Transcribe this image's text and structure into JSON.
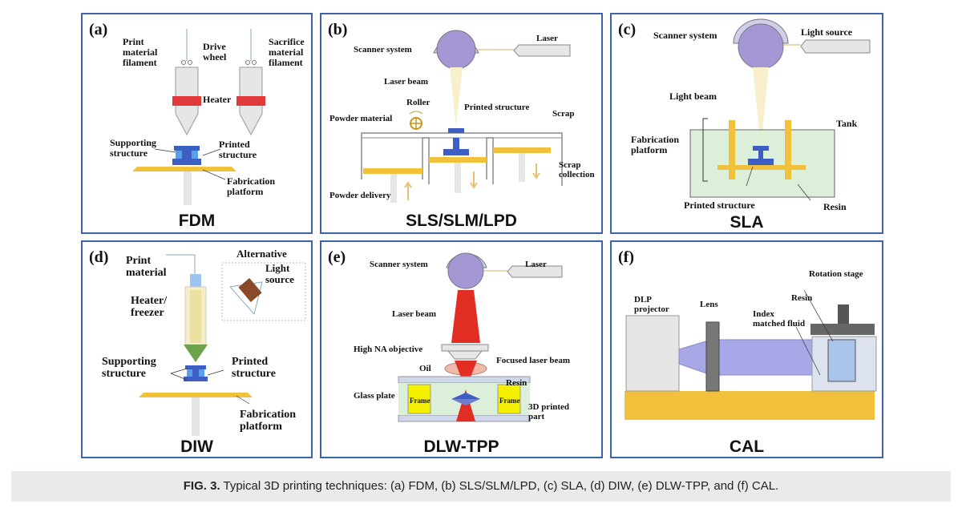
{
  "panels": {
    "a": {
      "tag": "(a)",
      "title": "FDM",
      "labels": {
        "print_material": "Print\nmaterial\nfilament",
        "drive_wheel": "Drive\nwheel",
        "sacrifice": "Sacrifice\nmaterial\nfilament",
        "heater": "Heater",
        "supporting": "Supporting\nstructure",
        "printed": "Printed\nstructure",
        "fabrication": "Fabrication\nplatform"
      }
    },
    "b": {
      "tag": "(b)",
      "title": "SLS/SLM/LPD",
      "labels": {
        "scanner": "Scanner system",
        "laser": "Laser",
        "laser_beam": "Laser beam",
        "roller": "Roller",
        "printed": "Printed structure",
        "scrap": "Scrap",
        "powder_material": "Powder material",
        "scrap_collection": "Scrap\ncollection",
        "powder_delivery": "Powder delivery"
      }
    },
    "c": {
      "tag": "(c)",
      "title": "SLA",
      "labels": {
        "scanner": "Scanner system",
        "light_source": "Light source",
        "light_beam": "Light beam",
        "tank": "Tank",
        "fabrication": "Fabrication\nplatform",
        "printed": "Printed structure",
        "resin": "Resin"
      }
    },
    "d": {
      "tag": "(d)",
      "title": "DIW",
      "labels": {
        "print_material": "Print\nmaterial",
        "alternative": "Alternative",
        "light_source": "Light\nsource",
        "heater": "Heater/\nfreezer",
        "supporting": "Supporting\nstructure",
        "printed": "Printed\nstructure",
        "fabrication": "Fabrication\nplatform"
      }
    },
    "e": {
      "tag": "(e)",
      "title": "DLW-TPP",
      "labels": {
        "scanner": "Scanner system",
        "laser": "Laser",
        "laser_beam": "Laser beam",
        "objective": "High NA objective",
        "focused": "Focused laser beam",
        "oil": "Oil",
        "resin": "Resin",
        "glass": "Glass plate",
        "frame_left": "Frame",
        "frame_right": "Frame",
        "part": "3D printed\npart"
      }
    },
    "f": {
      "tag": "(f)",
      "title": "CAL",
      "labels": {
        "rotation": "Rotation stage",
        "dlp": "DLP\nprojector",
        "lens": "Lens",
        "resin": "Resin",
        "index": "Index\nmatched fluid"
      }
    }
  },
  "caption": {
    "label": "FIG. 3.",
    "text": " Typical 3D printing techniques: (a) FDM, (b) SLS/SLM/LPD, (c) SLA, (d) DIW, (e) DLW-TPP, and (f) CAL."
  },
  "colors": {
    "border": "#3d63ad",
    "platform": "#f2c13c",
    "structure_blue": "#3d5fc4",
    "heater_red": "#e23a3a",
    "scanner_purple": "#a596d4",
    "laser_red": "#e22d24",
    "resin_green": "#dcefd8"
  }
}
